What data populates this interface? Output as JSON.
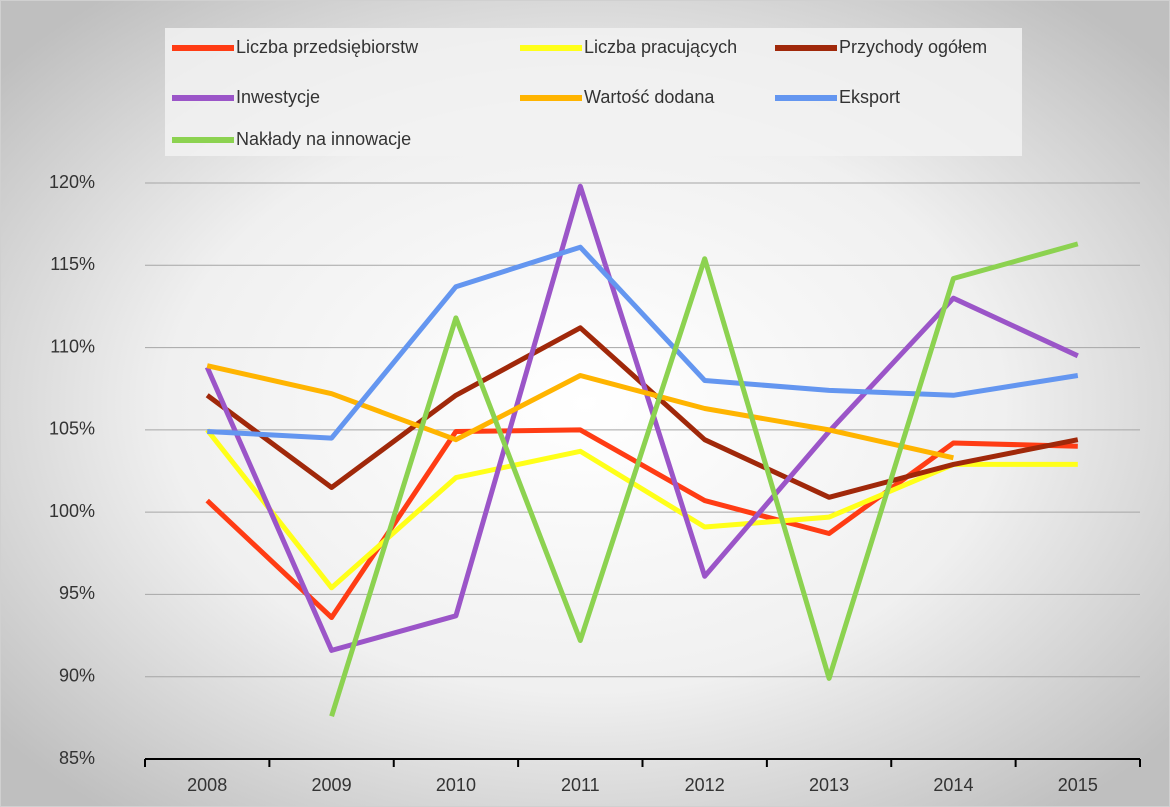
{
  "chart_data": {
    "type": "line",
    "categories": [
      "2008",
      "2009",
      "2010",
      "2011",
      "2012",
      "2013",
      "2014",
      "2015"
    ],
    "series": [
      {
        "name": "Liczba przedsiębiorstw",
        "color": "#ff3c14",
        "values": [
          100.7,
          93.6,
          104.9,
          105.0,
          100.7,
          98.7,
          104.2,
          104.0
        ]
      },
      {
        "name": "Liczba pracujących",
        "color": "#ffff19",
        "values": [
          105.0,
          95.4,
          102.1,
          103.7,
          99.1,
          99.7,
          102.9,
          102.9
        ]
      },
      {
        "name": "Przychody ogółem",
        "color": "#a0280a",
        "values": [
          107.1,
          101.5,
          107.1,
          111.2,
          104.4,
          100.9,
          102.9,
          104.4
        ]
      },
      {
        "name": "Inwestycje",
        "color": "#9b55c8",
        "values": [
          108.8,
          91.6,
          93.7,
          119.8,
          96.1,
          104.9,
          113.0,
          109.5
        ]
      },
      {
        "name": "Wartość dodana",
        "color": "#ffb400",
        "values": [
          108.9,
          107.2,
          104.4,
          108.3,
          106.3,
          105.0,
          103.3,
          null
        ]
      },
      {
        "name": "Eksport",
        "color": "#6496f0",
        "values": [
          104.9,
          104.5,
          113.7,
          116.1,
          108.0,
          107.4,
          107.1,
          108.3
        ]
      },
      {
        "name": "Nakłady na innowacje",
        "color": "#8cd250",
        "values": [
          null,
          87.6,
          111.8,
          92.2,
          115.4,
          89.9,
          114.2,
          116.3
        ]
      }
    ],
    "ylim": [
      85,
      120
    ],
    "yticks": [
      {
        "value": 85,
        "label": "85%"
      },
      {
        "value": 90,
        "label": "90%"
      },
      {
        "value": 95,
        "label": "95%"
      },
      {
        "value": 100,
        "label": "100%"
      },
      {
        "value": 105,
        "label": "105%"
      },
      {
        "value": 110,
        "label": "110%"
      },
      {
        "value": 115,
        "label": "115%"
      },
      {
        "value": 120,
        "label": "120%"
      }
    ],
    "grid": true,
    "legend": "top"
  }
}
